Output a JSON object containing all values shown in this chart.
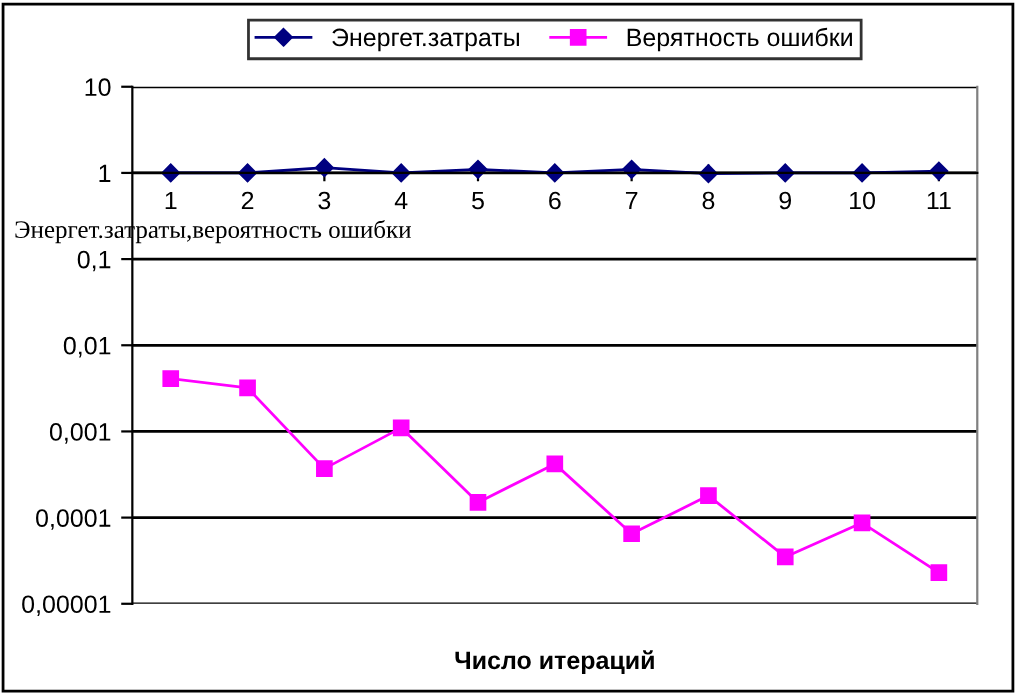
{
  "chart_data": {
    "type": "line",
    "xlabel": "Число итераций",
    "ylabel": "Энергет.затраты,вероятность ошибки",
    "categories": [
      "1",
      "2",
      "3",
      "4",
      "5",
      "6",
      "7",
      "8",
      "9",
      "10",
      "11"
    ],
    "series": [
      {
        "name": "Энергет.затраты",
        "color": "#000080",
        "marker": "diamond",
        "values": [
          1.0,
          1.0,
          1.15,
          1.0,
          1.1,
          1.0,
          1.1,
          0.98,
          1.0,
          1.0,
          1.05
        ]
      },
      {
        "name": "Верятность ошибки",
        "color": "#ff00ff",
        "marker": "square",
        "values": [
          0.0041,
          0.0032,
          0.00037,
          0.0011,
          0.00015,
          0.00042,
          6.5e-05,
          0.00018,
          3.5e-05,
          8.7e-05,
          2.3e-05
        ]
      }
    ],
    "log": "y",
    "ylim": [
      1e-05,
      10
    ],
    "yticks": [
      {
        "value": 1e-05,
        "label": "0,00001"
      },
      {
        "value": 0.0001,
        "label": "0,0001"
      },
      {
        "value": 0.001,
        "label": "0,001"
      },
      {
        "value": 0.01,
        "label": "0,01"
      },
      {
        "value": 0.1,
        "label": "0,1"
      },
      1,
      10
    ],
    "grid": "y",
    "legend": "top",
    "line_style": "solid"
  }
}
